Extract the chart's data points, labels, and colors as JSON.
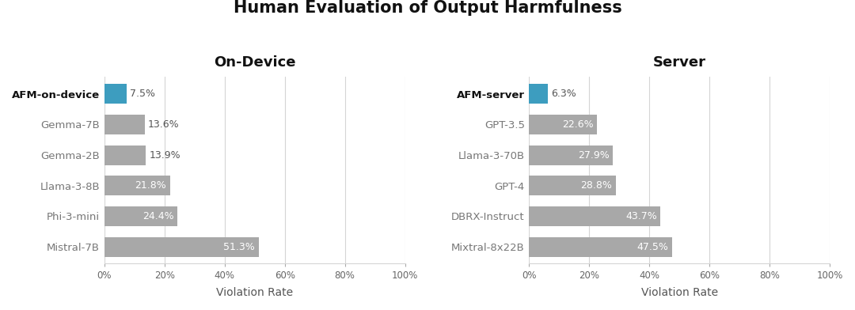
{
  "title": "Human Evaluation of Output Harmfulness",
  "title_fontsize": 15,
  "background_color": "#ffffff",
  "left_subtitle": "On-Device",
  "right_subtitle": "Server",
  "left_categories": [
    "AFM-on-device",
    "Gemma-7B",
    "Gemma-2B",
    "Llama-3-8B",
    "Phi-3-mini",
    "Mistral-7B"
  ],
  "left_values": [
    7.5,
    13.6,
    13.9,
    21.8,
    24.4,
    51.3
  ],
  "left_labels": [
    "7.5%",
    "13.6%",
    "13.9%",
    "21.8%",
    "24.4%",
    "51.3%"
  ],
  "left_bold": [
    true,
    false,
    false,
    false,
    false,
    false
  ],
  "right_categories": [
    "AFM-server",
    "GPT-3.5",
    "Llama-3-70B",
    "GPT-4",
    "DBRX-Instruct",
    "Mixtral-8x22B"
  ],
  "right_values": [
    6.3,
    22.6,
    27.9,
    28.8,
    43.7,
    47.5
  ],
  "right_labels": [
    "6.3%",
    "22.6%",
    "27.9%",
    "28.8%",
    "43.7%",
    "47.5%"
  ],
  "right_bold": [
    true,
    false,
    false,
    false,
    false,
    false
  ],
  "afm_color": "#3d9dbf",
  "bar_color": "#a8a8a8",
  "xlabel": "Violation Rate",
  "xlim": [
    0,
    100
  ],
  "xticks": [
    0,
    20,
    40,
    60,
    80,
    100
  ],
  "xtick_labels": [
    "0%",
    "20%",
    "40%",
    "60%",
    "80%",
    "100%"
  ],
  "grid_color": "#d5d5d5",
  "inside_threshold": 20,
  "text_color_inside": "#ffffff",
  "text_color_outside": "#555555",
  "label_fontsize": 9,
  "ytick_fontsize": 9.5,
  "xtick_fontsize": 8.5,
  "subtitle_fontsize": 13,
  "bar_height": 0.65
}
